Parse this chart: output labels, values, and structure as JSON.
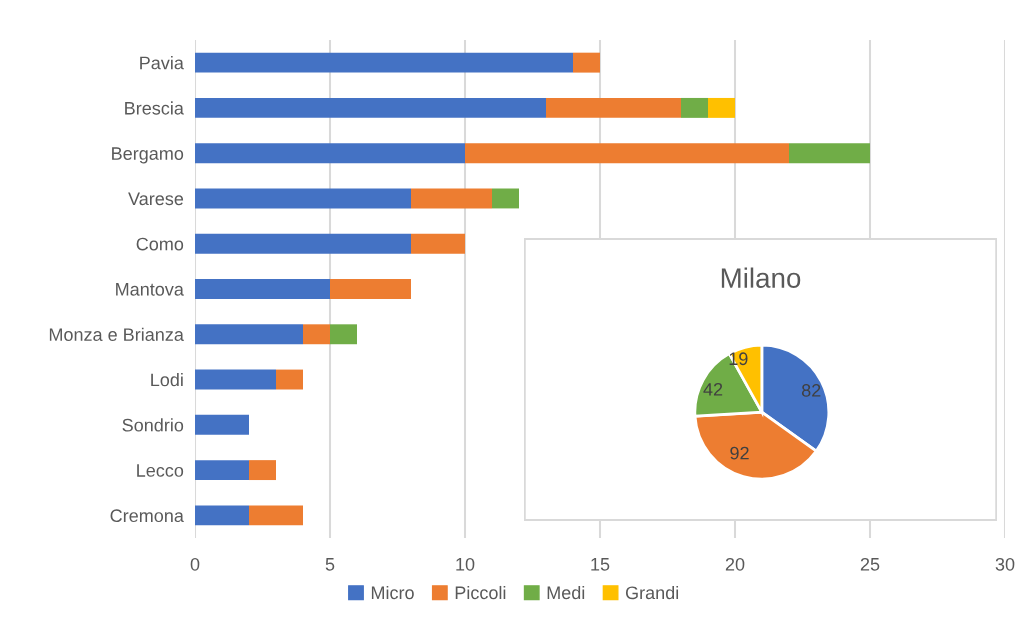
{
  "chart_data": [
    {
      "type": "bar",
      "orientation": "horizontal",
      "stacked": true,
      "categories": [
        "Pavia",
        "Brescia",
        "Bergamo",
        "Varese",
        "Como",
        "Mantova",
        "Monza e Brianza",
        "Lodi",
        "Sondrio",
        "Lecco",
        "Cremona"
      ],
      "series": [
        {
          "name": "Micro",
          "color": "#4472c4",
          "values": [
            14,
            13,
            10,
            8,
            8,
            5,
            4,
            3,
            2,
            2,
            2
          ]
        },
        {
          "name": "Piccoli",
          "color": "#ed7d31",
          "values": [
            1,
            5,
            12,
            3,
            2,
            3,
            1,
            1,
            0,
            1,
            2
          ]
        },
        {
          "name": "Medi",
          "color": "#70ad47",
          "values": [
            0,
            1,
            3,
            1,
            0,
            0,
            1,
            0,
            0,
            0,
            0
          ]
        },
        {
          "name": "Grandi",
          "color": "#ffc000",
          "values": [
            0,
            1,
            0,
            0,
            0,
            0,
            0,
            0,
            0,
            0,
            0
          ]
        }
      ],
      "xlim": [
        0,
        30
      ],
      "xticks": [
        0,
        5,
        10,
        15,
        20,
        25,
        30
      ],
      "grid": "x",
      "legend": "bottom"
    },
    {
      "type": "pie",
      "title": "Milano",
      "values": [
        82,
        92,
        42,
        19
      ],
      "colors": [
        "#4472c4",
        "#ed7d31",
        "#70ad47",
        "#ffc000"
      ],
      "data_labels": true
    }
  ]
}
